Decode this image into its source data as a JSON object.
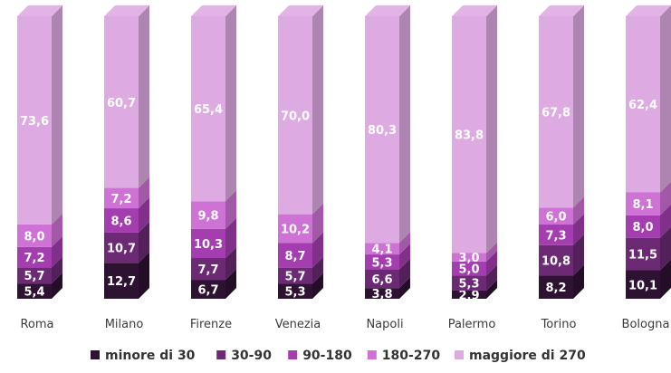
{
  "chart_data": {
    "type": "bar",
    "stacked": true,
    "three_d": true,
    "unit": "percent",
    "categories": [
      "Roma",
      "Milano",
      "Firenze",
      "Venezia",
      "Napoli",
      "Palermo",
      "Torino",
      "Bologna"
    ],
    "series": [
      {
        "name": "minore di 30",
        "color": "#2e1232",
        "values": [
          5.4,
          12.7,
          6.7,
          5.3,
          3.8,
          2.9,
          8.2,
          10.1
        ],
        "labels": [
          "5,4",
          "12,7",
          "6,7",
          "5,3",
          "3,8",
          "2,9",
          "8,2",
          "10,1"
        ]
      },
      {
        "name": "30-90",
        "color": "#6b2a73",
        "values": [
          5.7,
          10.7,
          7.7,
          5.7,
          6.6,
          5.3,
          10.8,
          11.5
        ],
        "labels": [
          "5,7",
          "10,7",
          "7,7",
          "5,7",
          "6,6",
          "5,3",
          "10,8",
          "11,5"
        ]
      },
      {
        "name": "90-180",
        "color": "#a43db0",
        "values": [
          7.2,
          8.6,
          10.3,
          8.7,
          5.3,
          5.0,
          7.3,
          8.0
        ],
        "labels": [
          "7,2",
          "8,6",
          "10,3",
          "8,7",
          "5,3",
          "5,0",
          "7,3",
          "8,0"
        ]
      },
      {
        "name": "180-270",
        "color": "#cf72d6",
        "values": [
          8.0,
          7.2,
          9.8,
          10.2,
          4.1,
          3.0,
          6.0,
          8.1
        ],
        "labels": [
          "8,0",
          "7,2",
          "9,8",
          "10,2",
          "4,1",
          "3,0",
          "6,0",
          "8,1"
        ]
      },
      {
        "name": "maggiore di 270",
        "color": "#deaae2",
        "values": [
          73.6,
          60.7,
          65.4,
          70.0,
          80.3,
          83.8,
          67.8,
          62.4
        ],
        "labels": [
          "73,6",
          "60,7",
          "65,4",
          "70,0",
          "80,3",
          "83,8",
          "67,8",
          "62,4"
        ]
      }
    ],
    "ylim": [
      0,
      100
    ],
    "grid": false,
    "legend_position": "bottom"
  }
}
